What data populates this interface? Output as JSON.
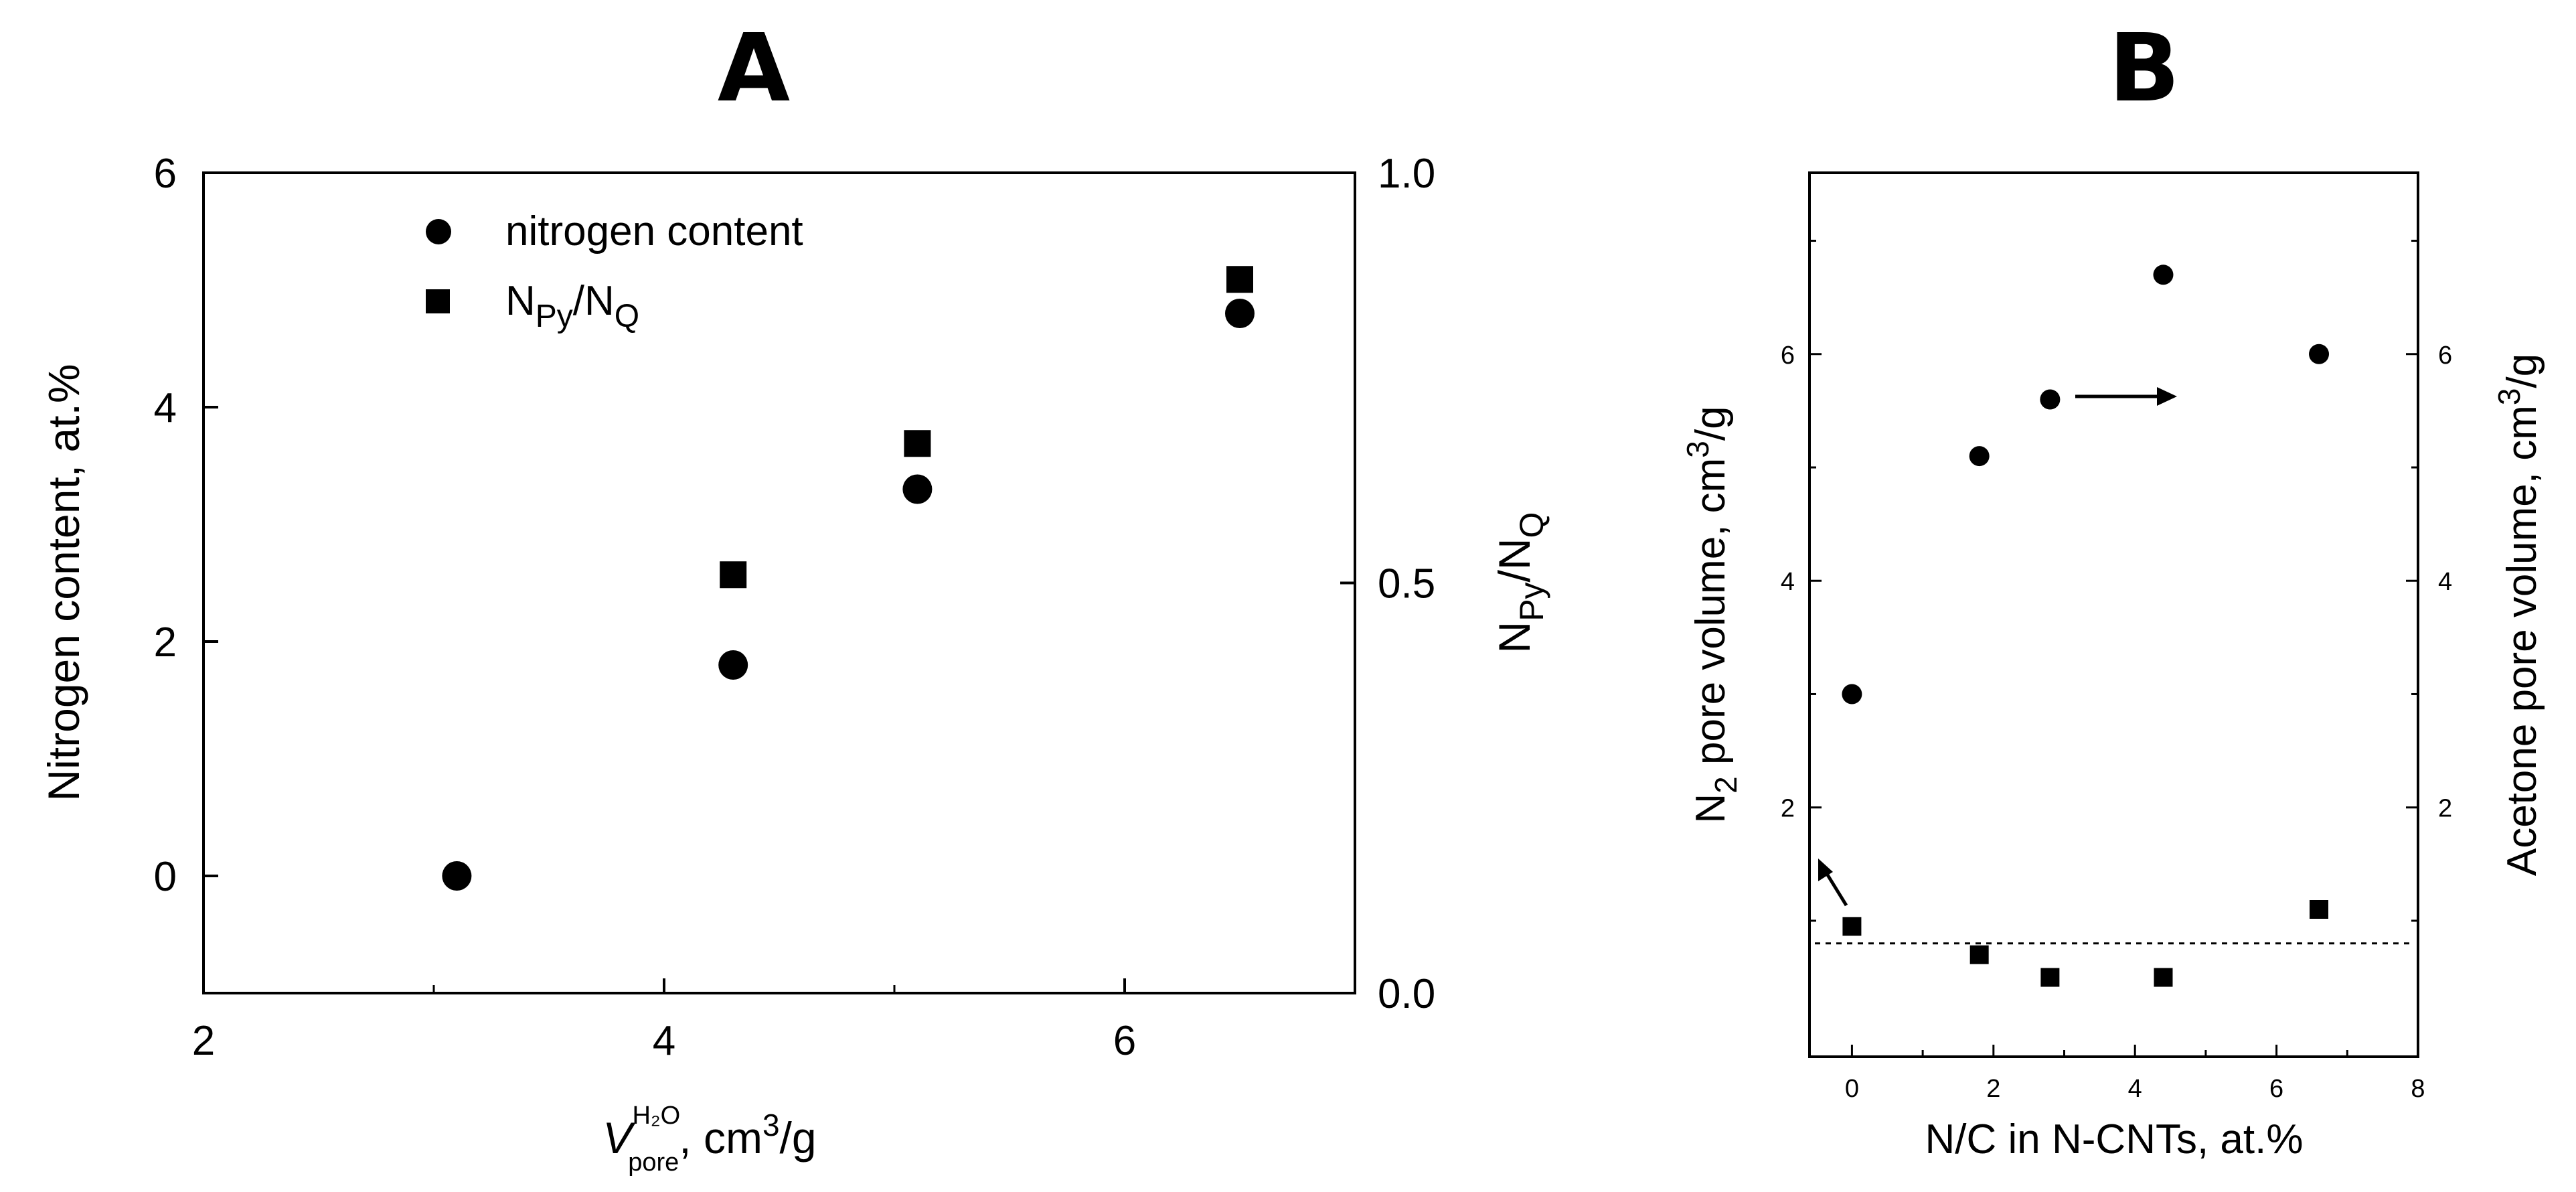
{
  "chart_data": [
    {
      "panel": "A",
      "type": "scatter",
      "xlabel": {
        "main": "V",
        "superscript": "H₂O",
        "subscript": "pore",
        "unit": ", cm",
        "unit_sup": "3",
        "unit_tail": "/g"
      },
      "ylabel": "Nitrogen content, at.%",
      "y2label": {
        "main": "N",
        "sub1": "Py",
        "slash": "/N",
        "sub2": "Q"
      },
      "xlim": [
        2,
        7
      ],
      "ylim": [
        -1,
        6
      ],
      "y2lim": [
        0,
        1
      ],
      "xticks": [
        2,
        4,
        6
      ],
      "yticks": [
        0,
        2,
        4,
        6
      ],
      "y2ticks": [
        "0.0",
        "0.5",
        "1.0"
      ],
      "legend_position": "top-left",
      "series": [
        {
          "name": "nitrogen content",
          "marker": "circle",
          "axis": "left",
          "x": [
            3.1,
            4.3,
            5.1,
            6.5
          ],
          "y": [
            0.0,
            1.8,
            3.3,
            4.8
          ]
        },
        {
          "name": "N_Py/N_Q",
          "legend_main": "N",
          "legend_sub1": "Py",
          "legend_slash": "/N",
          "legend_sub2": "Q",
          "marker": "square",
          "axis": "right",
          "x": [
            4.3,
            5.1,
            6.5
          ],
          "y": [
            0.51,
            0.67,
            0.87
          ]
        }
      ]
    },
    {
      "panel": "B",
      "type": "scatter",
      "xlabel": "N/C in N-CNTs, at.%",
      "ylabel": {
        "main": "N",
        "sub": "2",
        "rest": " pore volume, cm",
        "sup": "3",
        "tail": "/g"
      },
      "y2label": {
        "main": "Acetone pore volume, cm",
        "sup": "3",
        "tail": "/g"
      },
      "xlim": [
        -0.6,
        8
      ],
      "ylim": [
        -0.2,
        7.6
      ],
      "y2lim": [
        -0.2,
        7.6
      ],
      "xticks": [
        0,
        2,
        4,
        6,
        8
      ],
      "yticks": [
        2,
        4,
        6
      ],
      "y2ticks": [
        2,
        4,
        6
      ],
      "series": [
        {
          "marker": "circle",
          "axis": "right",
          "x": [
            0,
            1.8,
            2.8,
            4.4,
            6.6
          ],
          "y": [
            3.0,
            5.1,
            5.6,
            6.7,
            6.0
          ]
        },
        {
          "marker": "square",
          "axis": "left",
          "x": [
            0,
            1.8,
            2.8,
            4.4,
            6.6
          ],
          "y": [
            0.95,
            0.7,
            0.5,
            0.5,
            1.1
          ]
        }
      ],
      "reference_line_y": 0.8
    }
  ],
  "panel_letters": {
    "a": "A",
    "b": "B"
  }
}
